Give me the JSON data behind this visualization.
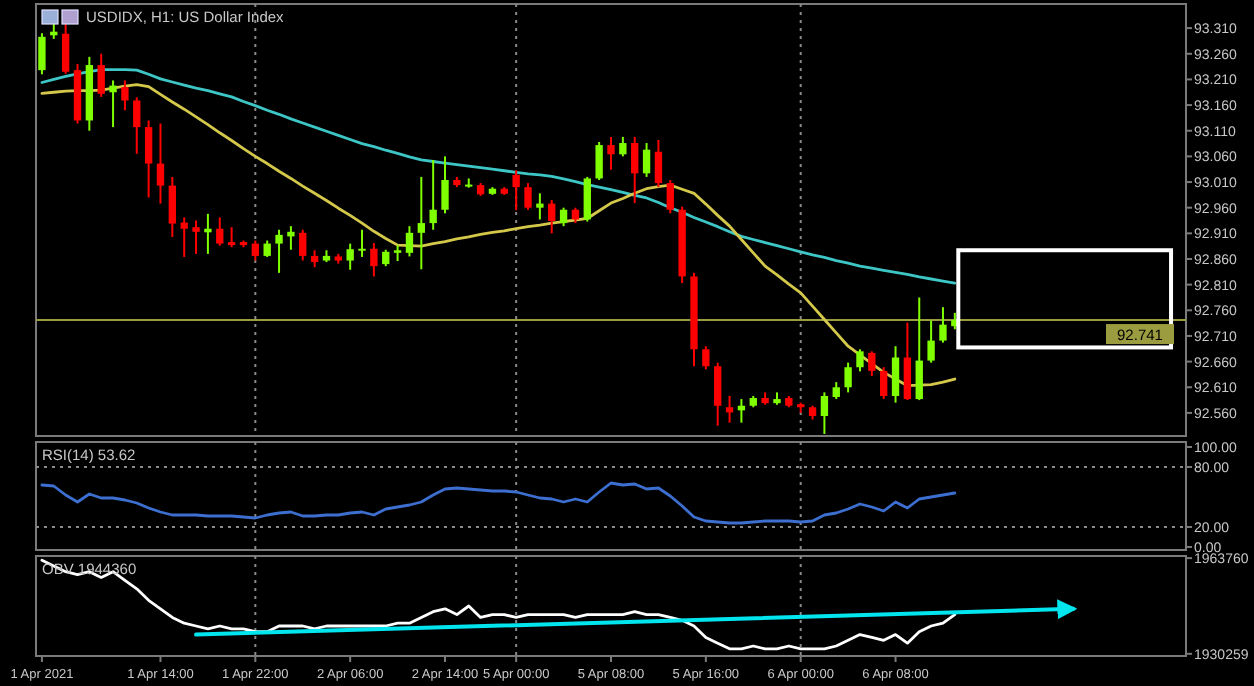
{
  "chart_data": [
    {
      "type": "candlestick",
      "title": "USDIDX, H1:  US Dollar Index",
      "tick_labels": "y",
      "categories": [
        "1 Apr 2021",
        null,
        null,
        null,
        null,
        null,
        null,
        null,
        null,
        null,
        "1 Apr 14:00",
        null,
        null,
        null,
        null,
        null,
        null,
        null,
        "1 Apr 22:00",
        null,
        null,
        null,
        null,
        null,
        null,
        null,
        "2 Apr 06:00",
        null,
        null,
        null,
        null,
        null,
        null,
        null,
        "2 Apr 14:00",
        null,
        null,
        null,
        null,
        null,
        "5 Apr 00:00",
        null,
        null,
        null,
        null,
        null,
        null,
        null,
        "5 Apr 08:00",
        null,
        null,
        null,
        null,
        null,
        null,
        null,
        "5 Apr 16:00",
        null,
        null,
        null,
        null,
        null,
        null,
        null,
        "6 Apr 00:00",
        null,
        null,
        null,
        null,
        null,
        null,
        null,
        "6 Apr 08:00",
        null,
        null,
        null,
        null,
        null,
        null,
        null,
        null,
        null,
        null,
        null,
        null,
        null,
        null,
        null,
        null,
        null,
        null,
        null,
        null,
        null,
        null,
        null,
        null
      ],
      "ohlc": [
        [
          93.228,
          93.3,
          93.22,
          93.293
        ],
        [
          93.296,
          93.318,
          93.289,
          93.303
        ],
        [
          93.299,
          93.325,
          93.221,
          93.225
        ],
        [
          93.228,
          93.24,
          93.124,
          93.13
        ],
        [
          93.13,
          93.254,
          93.11,
          93.238
        ],
        [
          93.238,
          93.26,
          93.176,
          93.182
        ],
        [
          93.185,
          93.208,
          93.117,
          93.198
        ],
        [
          93.195,
          93.208,
          93.15,
          93.169
        ],
        [
          93.169,
          93.175,
          93.065,
          93.117
        ],
        [
          93.117,
          93.13,
          92.98,
          93.046
        ],
        [
          93.046,
          93.124,
          92.968,
          93.003
        ],
        [
          93.003,
          93.02,
          92.903,
          92.929
        ],
        [
          92.931,
          92.941,
          92.864,
          92.919
        ],
        [
          92.922,
          92.935,
          92.87,
          92.913
        ],
        [
          92.912,
          92.948,
          92.87,
          92.919
        ],
        [
          92.919,
          92.941,
          92.886,
          92.89
        ],
        [
          92.893,
          92.922,
          92.883,
          92.887
        ],
        [
          92.893,
          92.896,
          92.883,
          92.887
        ],
        [
          92.89,
          92.896,
          92.857,
          92.866
        ],
        [
          92.866,
          92.896,
          92.864,
          92.89
        ],
        [
          92.89,
          92.917,
          92.833,
          92.907
        ],
        [
          92.904,
          92.924,
          92.878,
          92.913
        ],
        [
          92.911,
          92.917,
          92.857,
          92.866
        ],
        [
          92.866,
          92.877,
          92.844,
          92.854
        ],
        [
          92.857,
          92.877,
          92.854,
          92.866
        ],
        [
          92.865,
          92.87,
          92.851,
          92.857
        ],
        [
          92.857,
          92.89,
          92.839,
          92.879
        ],
        [
          92.877,
          92.917,
          92.864,
          92.88
        ],
        [
          92.88,
          92.891,
          92.826,
          92.846
        ],
        [
          92.85,
          92.878,
          92.846,
          92.874
        ],
        [
          92.872,
          92.887,
          92.856,
          92.877
        ],
        [
          92.872,
          92.924,
          92.865,
          92.911
        ],
        [
          92.911,
          93.02,
          92.84,
          92.93
        ],
        [
          92.93,
          93.053,
          92.917,
          92.956
        ],
        [
          92.956,
          93.06,
          92.949,
          93.014
        ],
        [
          93.014,
          93.02,
          93.0,
          93.004
        ],
        [
          93.003,
          93.017,
          92.999,
          93.005
        ],
        [
          93.004,
          93.008,
          92.983,
          92.986
        ],
        [
          92.987,
          93.0,
          92.985,
          92.997
        ],
        [
          92.997,
          93.0,
          92.985,
          92.987
        ],
        [
          93.024,
          93.033,
          92.955,
          93.0
        ],
        [
          93.0,
          93.008,
          92.956,
          92.96
        ],
        [
          92.96,
          92.988,
          92.937,
          92.968
        ],
        [
          92.968,
          92.975,
          92.91,
          92.934
        ],
        [
          92.93,
          92.96,
          92.924,
          92.956
        ],
        [
          92.956,
          92.96,
          92.93,
          92.937
        ],
        [
          92.937,
          93.02,
          92.933,
          93.017
        ],
        [
          93.017,
          93.088,
          93.014,
          93.082
        ],
        [
          93.082,
          93.098,
          93.034,
          93.064
        ],
        [
          93.064,
          93.098,
          93.06,
          93.086
        ],
        [
          93.086,
          93.098,
          92.969,
          93.027
        ],
        [
          93.027,
          93.086,
          93.02,
          93.073
        ],
        [
          93.069,
          93.092,
          93.0,
          93.008
        ],
        [
          93.008,
          93.014,
          92.949,
          92.956
        ],
        [
          92.956,
          92.962,
          92.813,
          92.826
        ],
        [
          92.826,
          92.833,
          92.651,
          92.684
        ],
        [
          92.684,
          92.69,
          92.645,
          92.651
        ],
        [
          92.651,
          92.658,
          92.535,
          92.574
        ],
        [
          92.571,
          92.593,
          92.541,
          92.561
        ],
        [
          92.565,
          92.587,
          92.541,
          92.574
        ],
        [
          92.574,
          92.593,
          92.571,
          92.589
        ],
        [
          92.589,
          92.6,
          92.576,
          92.579
        ],
        [
          92.579,
          92.6,
          92.576,
          92.587
        ],
        [
          92.589,
          92.593,
          92.571,
          92.574
        ],
        [
          92.577,
          92.58,
          92.56,
          92.571
        ],
        [
          92.571,
          92.574,
          92.547,
          92.554
        ],
        [
          92.554,
          92.6,
          92.519,
          92.593
        ],
        [
          92.591,
          92.62,
          92.587,
          92.61
        ],
        [
          92.61,
          92.658,
          92.6,
          92.649
        ],
        [
          92.649,
          92.684,
          92.641,
          92.68
        ],
        [
          92.677,
          92.68,
          92.632,
          92.642
        ],
        [
          92.642,
          92.649,
          92.587,
          92.593
        ],
        [
          92.593,
          92.69,
          92.58,
          92.668
        ],
        [
          92.668,
          92.736,
          92.585,
          92.587
        ],
        [
          92.587,
          92.785,
          92.585,
          92.662
        ],
        [
          92.662,
          92.74,
          92.658,
          92.701
        ],
        [
          92.701,
          92.766,
          92.697,
          92.732
        ],
        [
          92.729,
          92.755,
          92.723,
          92.741
        ],
        null,
        null,
        null,
        null,
        null,
        null,
        null,
        null,
        null,
        null,
        null,
        null,
        null,
        null,
        null,
        null,
        null,
        null,
        null
      ],
      "colors": [
        "#7fff00",
        "#7fff00",
        "#ff0000",
        "#ff0000",
        "#7fff00",
        "#ff0000",
        "#7fff00",
        "#ff0000",
        "#ff0000",
        "#ff0000",
        "#ff0000",
        "#ff0000",
        "#ff0000",
        "#ff0000",
        "#7fff00",
        "#ff0000",
        "#ff0000",
        "#ff0000",
        "#ff0000",
        "#7fff00",
        "#7fff00",
        "#7fff00",
        "#ff0000",
        "#ff0000",
        "#7fff00",
        "#ff0000",
        "#7fff00",
        "#7fff00",
        "#ff0000",
        "#7fff00",
        "#7fff00",
        "#7fff00",
        "#7fff00",
        "#7fff00",
        "#7fff00",
        "#ff0000",
        "#7fff00",
        "#ff0000",
        "#7fff00",
        "#ff0000",
        "#ff0000",
        "#ff0000",
        "#7fff00",
        "#ff0000",
        "#7fff00",
        "#ff0000",
        "#7fff00",
        "#7fff00",
        "#ff0000",
        "#7fff00",
        "#ff0000",
        "#7fff00",
        "#ff0000",
        "#ff0000",
        "#ff0000",
        "#ff0000",
        "#ff0000",
        "#ff0000",
        "#ff0000",
        "#7fff00",
        "#7fff00",
        "#ff0000",
        "#7fff00",
        "#ff0000",
        "#ff0000",
        "#ff0000",
        "#7fff00",
        "#7fff00",
        "#7fff00",
        "#7fff00",
        "#ff0000",
        "#ff0000",
        "#7fff00",
        "#ff0000",
        "#7fff00",
        "#7fff00",
        "#7fff00",
        "#7fff00",
        null,
        null,
        null,
        null,
        null,
        null,
        null,
        null,
        null,
        null,
        null,
        null,
        null,
        null,
        null,
        null,
        null,
        null,
        null
      ],
      "series": [
        {
          "type": "line",
          "color": "#3ec6c6",
          "values": [
            93.204,
            93.21,
            93.216,
            93.221,
            93.225,
            93.229,
            93.229,
            93.229,
            93.228,
            93.22,
            93.211,
            93.205,
            93.199,
            93.193,
            93.188,
            93.182,
            93.176,
            93.167,
            93.159,
            93.15,
            93.142,
            93.133,
            93.125,
            93.117,
            93.109,
            93.101,
            93.093,
            93.085,
            93.079,
            93.072,
            93.066,
            93.059,
            93.053,
            93.05,
            93.047,
            93.044,
            93.041,
            93.038,
            93.035,
            93.032,
            93.029,
            93.026,
            93.024,
            93.021,
            93.016,
            93.011,
            93.005,
            93.0,
            92.995,
            92.99,
            92.984,
            92.979,
            92.97,
            92.96,
            92.951,
            92.941,
            92.932,
            92.923,
            92.913,
            92.904,
            92.898,
            92.892,
            92.886,
            92.88,
            92.874,
            92.868,
            92.863,
            92.857,
            92.852,
            92.846,
            92.842,
            92.838,
            92.834,
            92.83,
            92.825,
            92.821,
            92.817,
            92.813,
            null,
            null,
            null,
            null,
            null,
            null,
            null,
            null,
            null,
            null,
            null,
            null,
            null,
            null,
            null,
            null,
            null,
            null,
            null
          ]
        },
        {
          "type": "line",
          "color": "#d4c84a",
          "values": [
            93.183,
            93.185,
            93.187,
            93.188,
            93.188,
            93.189,
            93.193,
            93.197,
            93.2,
            93.196,
            93.181,
            93.166,
            93.152,
            93.137,
            93.122,
            93.106,
            93.091,
            93.075,
            93.06,
            93.046,
            93.031,
            93.017,
            93.002,
            92.988,
            92.974,
            92.959,
            92.945,
            92.93,
            92.914,
            92.9,
            92.887,
            92.886,
            92.885,
            92.89,
            92.894,
            92.899,
            92.903,
            92.908,
            92.912,
            92.915,
            92.919,
            92.923,
            92.926,
            92.93,
            92.933,
            92.936,
            92.939,
            92.954,
            92.969,
            92.978,
            92.988,
            92.997,
            93.001,
            93.004,
            92.996,
            92.988,
            92.967,
            92.945,
            92.924,
            92.898,
            92.872,
            92.846,
            92.829,
            92.811,
            92.794,
            92.768,
            92.742,
            92.716,
            92.69,
            92.673,
            92.656,
            92.639,
            92.626,
            92.613,
            92.614,
            92.615,
            92.62,
            92.626,
            null,
            null,
            null,
            null,
            null,
            null,
            null,
            null,
            null,
            null,
            null,
            null,
            null,
            null,
            null,
            null,
            null,
            null,
            null
          ]
        }
      ],
      "ylim": [
        92.515,
        93.357
      ],
      "yticks": [
        {
          "value": 93.31,
          "label": "93.310"
        },
        {
          "value": 93.26,
          "label": "93.260"
        },
        {
          "value": 93.21,
          "label": "93.210"
        },
        {
          "value": 93.16,
          "label": "93.160"
        },
        {
          "value": 93.11,
          "label": "93.110"
        },
        {
          "value": 93.06,
          "label": "93.060"
        },
        {
          "value": 93.01,
          "label": "93.010"
        },
        {
          "value": 92.96,
          "label": "92.960"
        },
        {
          "value": 92.91,
          "label": "92.910"
        },
        {
          "value": 92.86,
          "label": "92.860"
        },
        {
          "value": 92.81,
          "label": "92.810"
        },
        {
          "value": 92.76,
          "label": "92.760"
        },
        {
          "value": 92.71,
          "label": "92.710"
        },
        {
          "value": 92.66,
          "label": "92.660"
        },
        {
          "value": 92.61,
          "label": "92.610"
        },
        {
          "value": 92.56,
          "label": "92.560"
        }
      ],
      "ref_lines": [
        {
          "axis": "y",
          "value": 92.741,
          "label": "92.741",
          "color": "#9b9b40",
          "line_style": "solid"
        },
        {
          "axis": "x",
          "value": "1 Apr 22:00",
          "color": "#8a8a8a",
          "line_style": "dotted"
        },
        {
          "axis": "x",
          "value": "5 Apr 00:00",
          "color": "#8a8a8a",
          "line_style": "dotted"
        },
        {
          "axis": "x",
          "value": "6 Apr 00:00",
          "color": "#8a8a8a",
          "line_style": "dotted"
        }
      ]
    },
    {
      "type": "line",
      "title": "RSI(14) 53.62",
      "tick_labels": "y",
      "categories": [
        "1 Apr 2021",
        null,
        null,
        null,
        null,
        null,
        null,
        null,
        null,
        null,
        "1 Apr 14:00",
        null,
        null,
        null,
        null,
        null,
        null,
        null,
        "1 Apr 22:00",
        null,
        null,
        null,
        null,
        null,
        null,
        null,
        "2 Apr 06:00",
        null,
        null,
        null,
        null,
        null,
        null,
        null,
        "2 Apr 14:00",
        null,
        null,
        null,
        null,
        null,
        "5 Apr 00:00",
        null,
        null,
        null,
        null,
        null,
        null,
        null,
        "5 Apr 08:00",
        null,
        null,
        null,
        null,
        null,
        null,
        null,
        "5 Apr 16:00",
        null,
        null,
        null,
        null,
        null,
        null,
        null,
        "6 Apr 00:00",
        null,
        null,
        null,
        null,
        null,
        null,
        null,
        "6 Apr 08:00",
        null,
        null,
        null,
        null,
        null,
        null,
        null,
        null,
        null,
        null,
        null,
        null,
        null,
        null,
        null,
        null,
        null,
        null,
        null,
        null,
        null,
        null,
        null,
        null
      ],
      "series": [
        {
          "color": "#3c6fd0",
          "values": [
            62,
            61,
            52,
            45,
            53,
            49,
            49,
            47,
            44,
            39,
            35,
            32,
            32,
            32,
            31,
            31,
            31,
            30,
            29,
            32,
            34,
            35,
            31,
            31,
            32,
            32,
            34,
            35,
            32,
            38,
            40,
            42,
            45,
            52,
            58,
            59,
            58,
            57,
            56,
            56,
            55,
            52,
            49,
            48,
            45,
            48,
            45,
            55,
            64,
            62,
            63,
            58,
            59,
            51,
            41,
            30,
            26,
            25,
            24,
            24,
            25,
            26,
            26,
            26,
            25,
            26,
            32,
            34,
            38,
            43,
            40,
            36,
            45,
            39,
            48,
            50,
            52,
            54,
            null,
            null,
            null,
            null,
            null,
            null,
            null,
            null,
            null,
            null,
            null,
            null,
            null,
            null,
            null,
            null,
            null,
            null,
            null
          ]
        }
      ],
      "ylim": [
        -3,
        105
      ],
      "yticks": [
        {
          "value": 100,
          "label": "100.00"
        },
        {
          "value": 80,
          "label": "80.00"
        },
        {
          "value": 20,
          "label": "20.00"
        },
        {
          "value": 0,
          "label": "0.00"
        }
      ],
      "ref_lines": [
        {
          "axis": "y",
          "value": 80,
          "color": "#8a8a8a",
          "line_style": "dotted"
        },
        {
          "axis": "y",
          "value": 20,
          "color": "#8a8a8a",
          "line_style": "dotted"
        },
        {
          "axis": "x",
          "value": "1 Apr 22:00",
          "color": "#8a8a8a",
          "line_style": "dotted"
        },
        {
          "axis": "x",
          "value": "5 Apr 00:00",
          "color": "#8a8a8a",
          "line_style": "dotted"
        },
        {
          "axis": "x",
          "value": "6 Apr 00:00",
          "color": "#8a8a8a",
          "line_style": "dotted"
        }
      ]
    },
    {
      "type": "line",
      "title": "OBV 1944360",
      "categories": [
        "1 Apr 2021",
        null,
        null,
        null,
        null,
        null,
        null,
        null,
        null,
        null,
        "1 Apr 14:00",
        null,
        null,
        null,
        null,
        null,
        null,
        null,
        "1 Apr 22:00",
        null,
        null,
        null,
        null,
        null,
        null,
        null,
        "2 Apr 06:00",
        null,
        null,
        null,
        null,
        null,
        null,
        null,
        "2 Apr 14:00",
        null,
        null,
        null,
        null,
        null,
        "5 Apr 00:00",
        null,
        null,
        null,
        null,
        null,
        null,
        null,
        "5 Apr 08:00",
        null,
        null,
        null,
        null,
        null,
        null,
        null,
        "5 Apr 16:00",
        null,
        null,
        null,
        null,
        null,
        null,
        null,
        "6 Apr 00:00",
        null,
        null,
        null,
        null,
        null,
        null,
        null,
        "6 Apr 08:00",
        null,
        null,
        null,
        null,
        null,
        null,
        null,
        null,
        null,
        null,
        null,
        null,
        null,
        null,
        null,
        null,
        null,
        null,
        null,
        null,
        null,
        null,
        null,
        null
      ],
      "series": [
        {
          "color": "#ffffff",
          "values": [
            1963000,
            1961000,
            1959000,
            1958000,
            1959000,
            1957000,
            1959000,
            1956000,
            1953000,
            1949000,
            1946000,
            1943000,
            1941000,
            1940000,
            1939000,
            1940000,
            1939000,
            1939000,
            1938000,
            1938000,
            1940000,
            1940000,
            1940000,
            1939000,
            1940000,
            1940000,
            1940000,
            1940000,
            1940000,
            1940000,
            1941000,
            1941000,
            1943000,
            1945000,
            1946000,
            1944000,
            1947000,
            1943000,
            1944000,
            1944000,
            1943000,
            1944000,
            1944000,
            1944000,
            1944000,
            1943000,
            1944000,
            1944000,
            1944000,
            1944000,
            1945000,
            1944000,
            1944000,
            1943000,
            1942000,
            1940000,
            1936000,
            1934000,
            1932000,
            1932000,
            1933000,
            1932000,
            1932000,
            1933000,
            1932000,
            1932000,
            1932000,
            1933000,
            1935000,
            1937000,
            1936000,
            1935000,
            1937000,
            1934000,
            1938000,
            1940000,
            1941000,
            1944000,
            null,
            null,
            null,
            null,
            null,
            null,
            null,
            null,
            null,
            null,
            null,
            null,
            null,
            null,
            null,
            null,
            null,
            null,
            null
          ]
        },
        {
          "type": "line",
          "color": "#00e5ee",
          "values": [
            null,
            null,
            null,
            null,
            null,
            null,
            null,
            null,
            null,
            null,
            null,
            null,
            null,
            1937000,
            null,
            null,
            null,
            null,
            null,
            null,
            null,
            null,
            null,
            null,
            null,
            null,
            null,
            null,
            null,
            null,
            null,
            null,
            null,
            null,
            null,
            null,
            null,
            null,
            null,
            null,
            null,
            null,
            null,
            null,
            null,
            null,
            null,
            null,
            null,
            null,
            null,
            null,
            null,
            null,
            null,
            null,
            null,
            null,
            null,
            null,
            null,
            null,
            null,
            null,
            null,
            null,
            null,
            null,
            null,
            null,
            null,
            null,
            null,
            null,
            null,
            null,
            null,
            null,
            null,
            null,
            null,
            null,
            null,
            null,
            null,
            null,
            null,
            1946000,
            null,
            null,
            null,
            null,
            null,
            null,
            null,
            null,
            null
          ]
        }
      ],
      "ylim": [
        1929500,
        1964500
      ],
      "yticks": [
        1963760,
        1930259
      ],
      "ref_lines": [
        {
          "axis": "x",
          "value": "1 Apr 22:00",
          "color": "#8a8a8a",
          "line_style": "dotted"
        },
        {
          "axis": "x",
          "value": "5 Apr 00:00",
          "color": "#8a8a8a",
          "line_style": "dotted"
        },
        {
          "axis": "x",
          "value": "6 Apr 00:00",
          "color": "#8a8a8a",
          "line_style": "dotted"
        }
      ]
    }
  ]
}
